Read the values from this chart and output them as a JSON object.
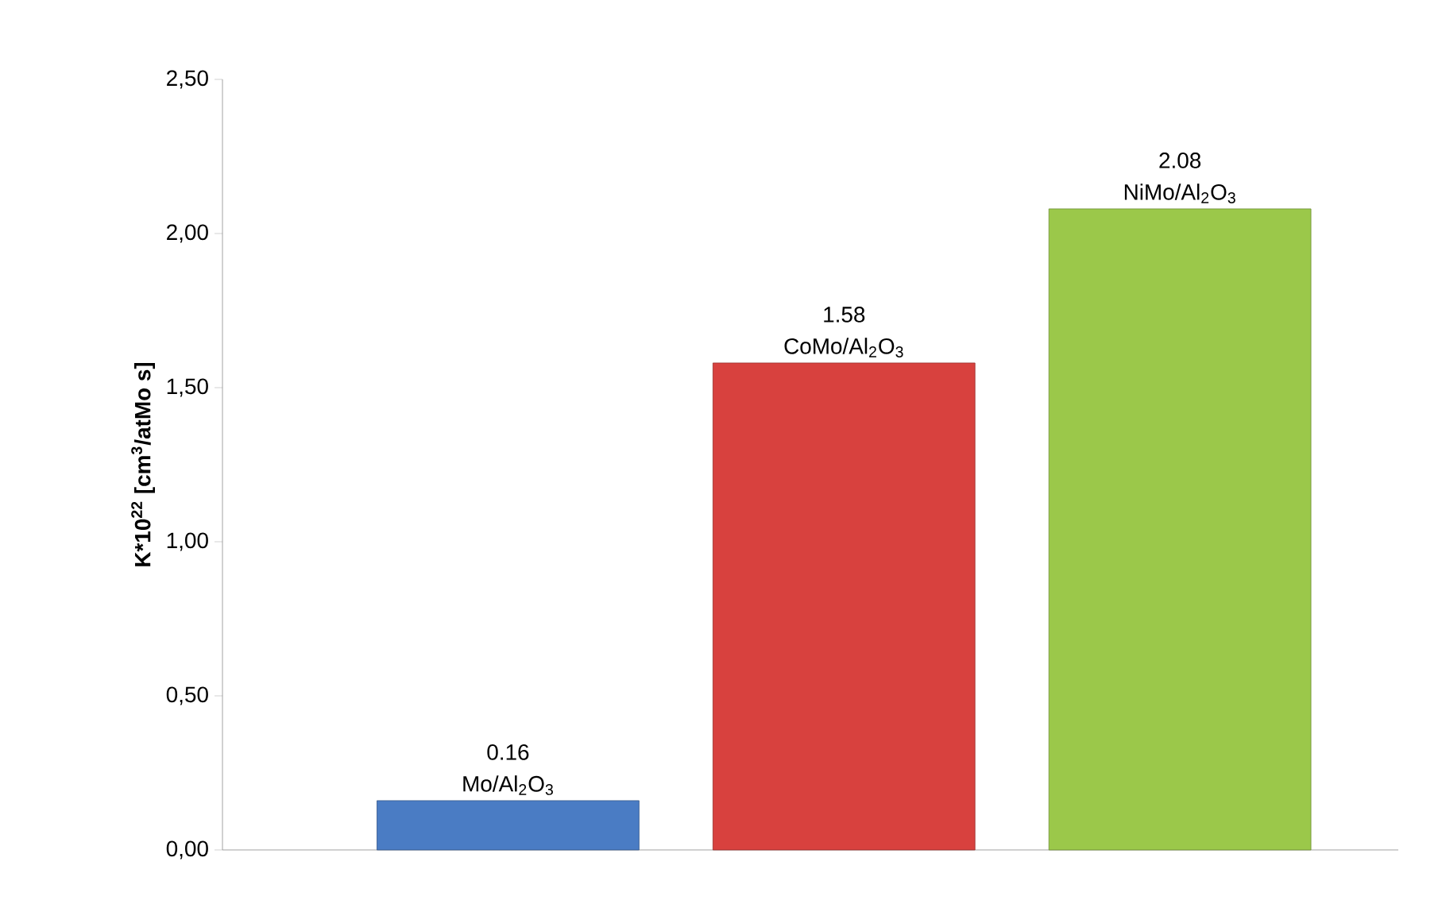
{
  "chart_data": {
    "type": "bar",
    "ylabel": "K*10$^{22}$  [cm$^{3}$/atMo s]",
    "categories": [
      "Mo/Al$_{2}$O$_{3}$",
      "CoMo/Al$_{2}$O$_{3}$",
      "NiMo/Al$_{2}$O$_{3}$"
    ],
    "values": [
      0.16,
      1.58,
      2.08
    ],
    "value_labels": [
      "0.16",
      "1.58",
      "2.08"
    ],
    "colors": [
      "#4a7cc4",
      "#d8413e",
      "#9bc84a"
    ],
    "ylim": [
      0,
      2.5
    ],
    "yticks": [
      {
        "value": 0,
        "label": "0,00"
      },
      {
        "value": 0.5,
        "label": "0,50"
      },
      {
        "value": 1,
        "label": "1,00"
      },
      {
        "value": 1.5,
        "label": "1,50"
      },
      {
        "value": 2,
        "label": "2,00"
      },
      {
        "value": 2.5,
        "label": "2,50"
      }
    ],
    "grid": false
  }
}
